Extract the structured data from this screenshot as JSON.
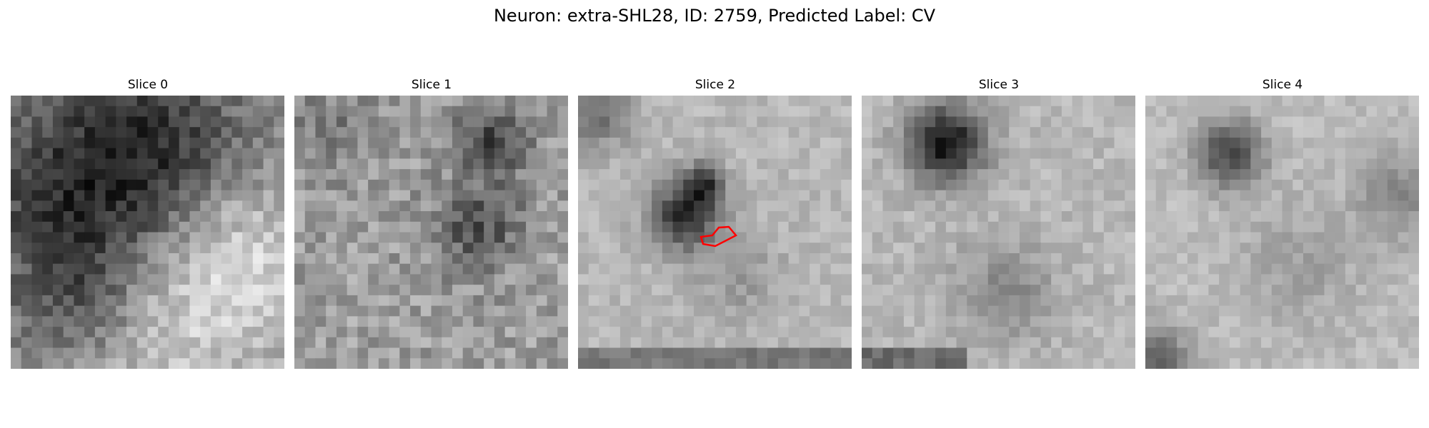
{
  "figure": {
    "title": "Neuron: extra-SHL28, ID: 2759, Predicted Label: CV",
    "background": "#ffffff"
  },
  "slices": [
    {
      "title": "Slice 0"
    },
    {
      "title": "Slice 1"
    },
    {
      "title": "Slice 2",
      "annotation": {
        "shape": "polygon",
        "color": "#ff0000"
      }
    },
    {
      "title": "Slice 3"
    },
    {
      "title": "Slice 4"
    }
  ],
  "colormap": "gray"
}
